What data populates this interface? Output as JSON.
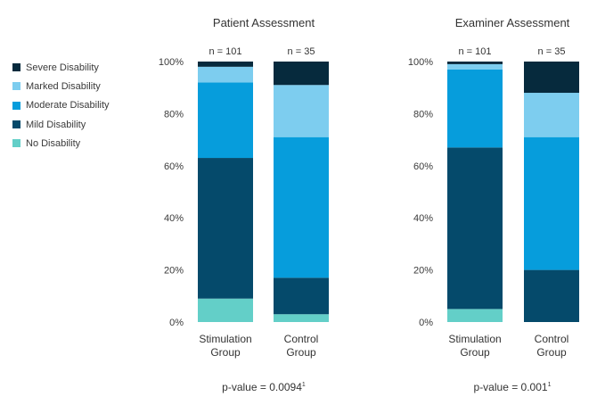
{
  "chart_data": {
    "type": "bar",
    "stacked": true,
    "legend": {
      "placement": "left",
      "entries": [
        "Severe Disability",
        "Marked Disability",
        "Moderate Disability",
        "Mild Disability",
        "No Disability"
      ]
    },
    "colors": {
      "No Disability": "#63cfc8",
      "Mild Disability": "#054a6b",
      "Moderate Disability": "#069ddc",
      "Marked Disability": "#7dcdef",
      "Severe Disability": "#062a3d"
    },
    "y_ticks": [
      "0%",
      "20%",
      "40%",
      "60%",
      "80%",
      "100%"
    ],
    "ylim": [
      0,
      100
    ],
    "stack_order": [
      "No Disability",
      "Mild Disability",
      "Moderate Disability",
      "Marked Disability",
      "Severe Disability"
    ],
    "panels": [
      {
        "title": "Patient Assessment",
        "p_value": "p-value = 0.0094",
        "p_value_sup": "1",
        "groups": [
          {
            "label_line1": "Stimulation",
            "label_line2": "Group",
            "n_label": "n = 101",
            "values": {
              "No Disability": 9,
              "Mild Disability": 54,
              "Moderate Disability": 29,
              "Marked Disability": 6,
              "Severe Disability": 2
            }
          },
          {
            "label_line1": "Control",
            "label_line2": "Group",
            "n_label": "n = 35",
            "values": {
              "No Disability": 3,
              "Mild Disability": 14,
              "Moderate Disability": 54,
              "Marked Disability": 20,
              "Severe Disability": 9
            }
          }
        ]
      },
      {
        "title": "Examiner Assessment",
        "p_value": "p-value = 0.001",
        "p_value_sup": "1",
        "groups": [
          {
            "label_line1": "Stimulation",
            "label_line2": "Group",
            "n_label": "n = 101",
            "values": {
              "No Disability": 5,
              "Mild Disability": 62,
              "Moderate Disability": 30,
              "Marked Disability": 2,
              "Severe Disability": 1
            }
          },
          {
            "label_line1": "Control",
            "label_line2": "Group",
            "n_label": "n = 35",
            "values": {
              "No Disability": 0,
              "Mild Disability": 20,
              "Moderate Disability": 51,
              "Marked Disability": 17,
              "Severe Disability": 12
            }
          }
        ]
      }
    ]
  }
}
